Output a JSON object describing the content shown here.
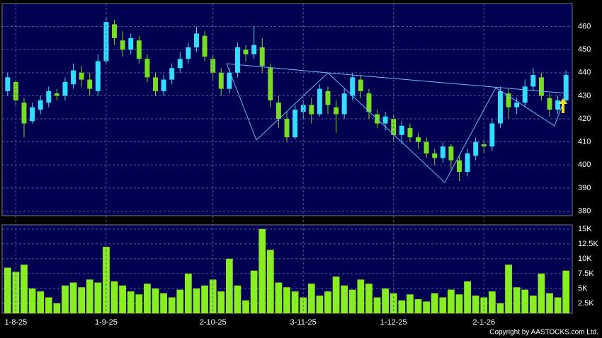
{
  "chart_data": {
    "type": "candlestick",
    "categories": [
      null,
      "1-8-25",
      null,
      null,
      null,
      null,
      null,
      null,
      null,
      null,
      null,
      null,
      "1-9-25",
      null,
      null,
      null,
      null,
      null,
      null,
      null,
      null,
      null,
      null,
      null,
      null,
      "2-10-25",
      null,
      null,
      null,
      null,
      null,
      null,
      null,
      null,
      null,
      null,
      "3-11-25",
      null,
      null,
      null,
      null,
      null,
      null,
      null,
      null,
      null,
      null,
      "1-12-25",
      null,
      null,
      null,
      null,
      null,
      null,
      null,
      null,
      null,
      null,
      "2-1-26",
      null,
      null,
      null,
      null,
      null,
      null,
      null,
      null,
      null,
      null
    ],
    "open": [
      432,
      436,
      427,
      419,
      424,
      427,
      431,
      430,
      435,
      440,
      437,
      432,
      445,
      461,
      454,
      450,
      454,
      446,
      438,
      432,
      437,
      442,
      446,
      451,
      456,
      446,
      440,
      433,
      440,
      450,
      448,
      451,
      442,
      427,
      420,
      412,
      423,
      426,
      422,
      432,
      425,
      422,
      430,
      437,
      431,
      422,
      418,
      420,
      413,
      416,
      412,
      410,
      405,
      403,
      408,
      402,
      397,
      404,
      409,
      408,
      418,
      431,
      425,
      427,
      434,
      438,
      429,
      424,
      428
    ],
    "high": [
      440,
      437,
      429,
      427,
      430,
      434,
      433,
      438,
      444,
      443,
      440,
      448,
      464,
      463,
      458,
      457,
      456,
      448,
      440,
      439,
      444,
      449,
      453,
      460,
      458,
      448,
      442,
      442,
      453,
      452,
      460,
      455,
      444,
      430,
      423,
      426,
      428,
      429,
      435,
      434,
      428,
      433,
      440,
      439,
      433,
      424,
      423,
      422,
      419,
      418,
      414,
      412,
      407,
      410,
      409,
      404,
      407,
      412,
      411,
      420,
      434,
      433,
      429,
      437,
      442,
      440,
      431,
      430,
      441
    ],
    "low": [
      430,
      426,
      412,
      418,
      422,
      425,
      428,
      428,
      433,
      434,
      430,
      430,
      444,
      452,
      447,
      448,
      444,
      436,
      430,
      430,
      435,
      440,
      444,
      449,
      445,
      437,
      430,
      431,
      438,
      445,
      446,
      440,
      425,
      416,
      410,
      411,
      420,
      418,
      421,
      422,
      414,
      420,
      428,
      429,
      420,
      416,
      415,
      410,
      409,
      410,
      407,
      403,
      400,
      401,
      398,
      393,
      395,
      402,
      405,
      406,
      416,
      420,
      422,
      425,
      432,
      428,
      421,
      422,
      427
    ],
    "close": [
      438,
      428,
      418,
      425,
      428,
      432,
      430,
      436,
      441,
      437,
      433,
      445,
      462,
      455,
      450,
      455,
      446,
      438,
      432,
      437,
      442,
      446,
      451,
      457,
      447,
      440,
      433,
      440,
      451,
      448,
      452,
      443,
      428,
      420,
      412,
      424,
      426,
      422,
      433,
      426,
      422,
      431,
      438,
      432,
      423,
      418,
      421,
      413,
      417,
      412,
      410,
      405,
      403,
      408,
      402,
      397,
      405,
      410,
      408,
      418,
      432,
      425,
      427,
      434,
      439,
      430,
      424,
      428,
      439
    ],
    "up_color": "#33ddff",
    "down_color": "#77dd22",
    "ylim": [
      378,
      470
    ],
    "yticks": [
      380,
      390,
      400,
      410,
      420,
      430,
      440,
      450,
      460
    ],
    "grid": true,
    "volume": {
      "values": [
        8500,
        7800,
        9000,
        5000,
        4500,
        3500,
        2500,
        5500,
        6000,
        5200,
        6500,
        6000,
        12000,
        6200,
        5500,
        4500,
        4000,
        5800,
        5000,
        4200,
        3500,
        4800,
        7500,
        5000,
        5500,
        6500,
        4500,
        10000,
        5500,
        3000,
        8000,
        15000,
        11500,
        6000,
        5200,
        4500,
        3500,
        5800,
        3800,
        4500,
        7000,
        5500,
        4800,
        6500,
        5800,
        3500,
        5000,
        4200,
        3000,
        4000,
        3200,
        2800,
        4200,
        3500,
        4800,
        4000,
        6200,
        3800,
        3500,
        4500,
        2500,
        9000,
        5200,
        4800,
        3800,
        7500,
        4200,
        3500,
        8000
      ],
      "color": "#88ee22",
      "ylim": [
        830,
        15700
      ],
      "yticks": [
        {
          "value": 2500,
          "label": "2.5K"
        },
        {
          "value": 5000,
          "label": "5K"
        },
        {
          "value": 7500,
          "label": "7.5K"
        },
        {
          "value": 10000,
          "label": "10K"
        },
        {
          "value": 12500,
          "label": "12.5K"
        },
        {
          "value": 15000,
          "label": "15K"
        }
      ]
    },
    "annotation": "Copyright by AASTOCKS.com Ltd."
  }
}
